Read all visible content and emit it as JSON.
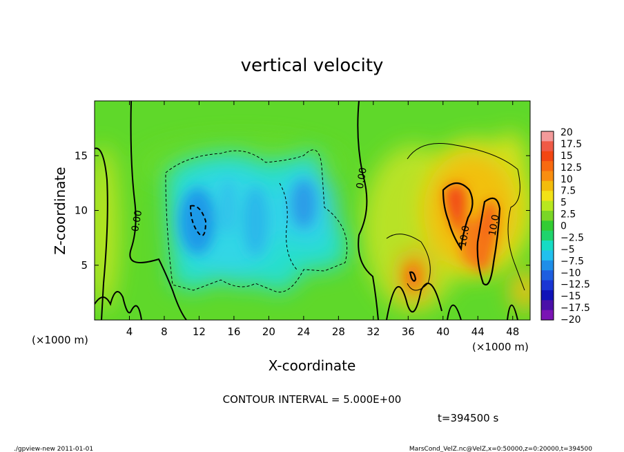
{
  "chart_data": {
    "type": "heatmap",
    "title": "vertical velocity",
    "xlabel": "X-coordinate",
    "ylabel": "Z-coordinate",
    "x_unit_label": "(×1000 m)",
    "xlim": [
      0,
      50
    ],
    "ylim": [
      0,
      20
    ],
    "x_ticks": [
      4,
      8,
      12,
      16,
      20,
      24,
      28,
      32,
      36,
      40,
      44,
      48
    ],
    "y_ticks": [
      5,
      10,
      15
    ],
    "contour_interval_text": "CONTOUR INTERVAL = 5.000E+00",
    "time_text": "t=394500 s",
    "contour_labels": [
      {
        "text": "0.00",
        "x": 5.2,
        "z": 9.0
      },
      {
        "text": "0.00",
        "x": 31.0,
        "z": 12.9
      },
      {
        "text": "10.0",
        "x": 42.8,
        "z": 7.6
      },
      {
        "text": "10.0",
        "x": 46.2,
        "z": 8.6
      }
    ],
    "colorbar": {
      "labels": [
        "20",
        "17.5",
        "15",
        "12.5",
        "10",
        "7.5",
        "5",
        "2.5",
        "0",
        "−2.5",
        "−5",
        "−7.5",
        "−10",
        "−12.5",
        "−15",
        "−17.5",
        "−20"
      ],
      "colors": [
        "#f39a9a",
        "#ef5a46",
        "#f24612",
        "#f86a10",
        "#f98e10",
        "#f3bc0c",
        "#f2e217",
        "#b8e81f",
        "#7ad626",
        "#33cc33",
        "#1fd46c",
        "#16dcc4",
        "#21c0ee",
        "#1e8ee9",
        "#1e5ee0",
        "#1a36d4",
        "#1013b8",
        "#4a10a8",
        "#7a14b4"
      ]
    },
    "features": [
      {
        "type": "updraft",
        "x_range": [
          39,
          48
        ],
        "z_range": [
          2,
          13
        ],
        "max_value": 15
      },
      {
        "type": "updraft",
        "x_range": [
          35,
          38
        ],
        "z_range": [
          3,
          6
        ],
        "max_value": 10
      },
      {
        "type": "downdraft",
        "x_range": [
          8,
          30
        ],
        "z_range": [
          3,
          16
        ],
        "min_value": -10
      },
      {
        "type": "downdraft",
        "x_range": [
          11,
          13
        ],
        "z_range": [
          8,
          10.5
        ],
        "min_value": -10
      }
    ]
  },
  "footer": {
    "left": "./gpview-new   2011-01-01",
    "right": "MarsCond_VelZ.nc@VelZ,x=0:50000,z=0:20000,t=394500"
  }
}
